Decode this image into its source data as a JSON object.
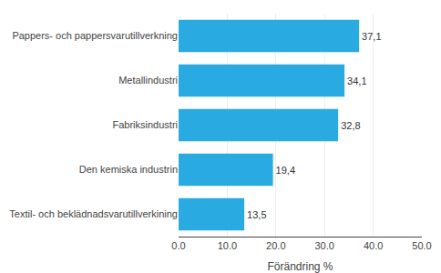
{
  "chart_data": {
    "type": "bar",
    "orientation": "horizontal",
    "categories": [
      "Textil- och beklädnadsvarutillverkining",
      "Den kemiska industrin",
      "Fabriksindustri",
      "Metallindustri",
      "Pappers- och pappersvarutillverkning"
    ],
    "values": [
      13.5,
      19.4,
      32.8,
      34.1,
      37.1
    ],
    "value_labels": [
      "13,5",
      "19,4",
      "32,8",
      "34,1",
      "37,1"
    ],
    "data_labels": true,
    "color": "#29ABE2",
    "xlabel": "Förändring %",
    "xlim": [
      0,
      50
    ],
    "xticks": [
      {
        "value": 0,
        "label": "0.0"
      },
      {
        "value": 10,
        "label": "10.0"
      },
      {
        "value": 20,
        "label": "20.0"
      },
      {
        "value": 30,
        "label": "30.0"
      },
      {
        "value": 40,
        "label": "40.0"
      },
      {
        "value": 50,
        "label": "50.0"
      }
    ],
    "grid": true
  }
}
